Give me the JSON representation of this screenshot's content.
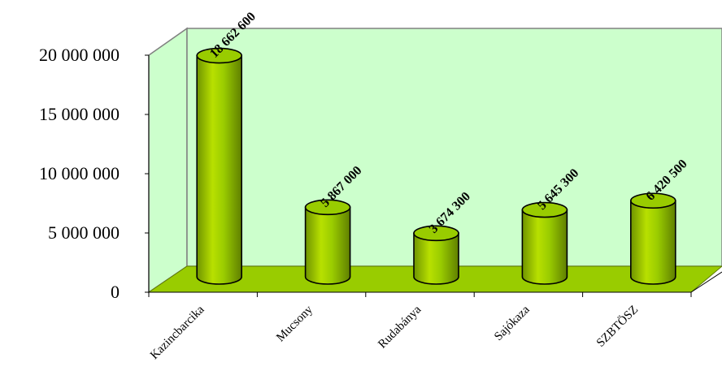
{
  "chart_data": {
    "type": "bar",
    "style": "3d-cylinder",
    "categories": [
      "Kazincbarcika",
      "Mucsony",
      "Rudabánya",
      "Sajókaza",
      "SZBTÖSZ"
    ],
    "values": [
      18662600,
      5867000,
      3674300,
      5645300,
      6420500
    ],
    "value_labels": [
      "18 662 600",
      "5 867 000",
      "3 674 300",
      "5 645 300",
      "6 420 500"
    ],
    "ylim": [
      0,
      20000000
    ],
    "yticks": [
      0,
      5000000,
      10000000,
      15000000,
      20000000
    ],
    "ytick_labels": [
      "0",
      "5 000 000",
      "10 000 000",
      "15 000 000",
      "20 000 000"
    ],
    "grid": false,
    "legend": "none",
    "colors": {
      "bar": "#99cc00",
      "bar_dark": "#5f7f00",
      "floor": "#99cc00",
      "wall": "#ccffcc"
    }
  }
}
